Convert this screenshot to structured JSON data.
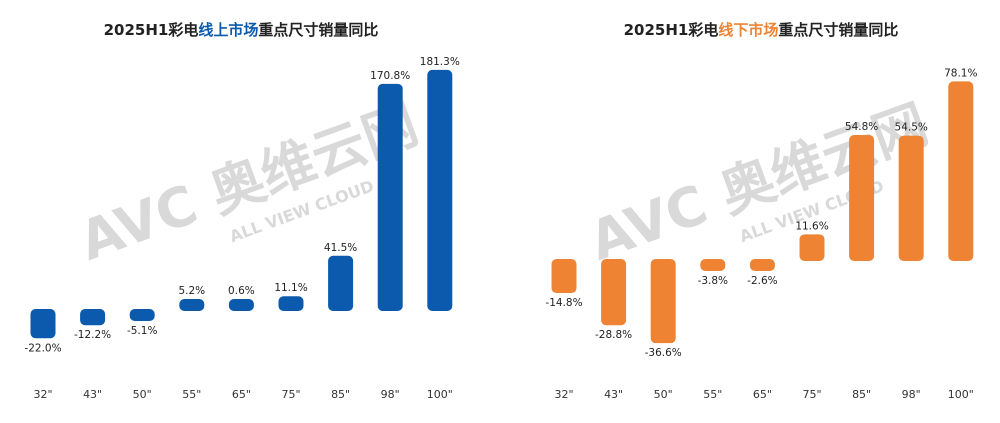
{
  "charts": [
    {
      "title_parts": [
        {
          "text": "2025H1彩电",
          "highlight": false
        },
        {
          "text": "线上市场",
          "highlight": true
        },
        {
          "text": "重点尺寸销量同比",
          "highlight": false
        }
      ],
      "accent_color": "#0b5aad"
    },
    {
      "title_parts": [
        {
          "text": "2025H1彩电",
          "highlight": false
        },
        {
          "text": "线下市场",
          "highlight": true
        },
        {
          "text": "重点尺寸销量同比",
          "highlight": false
        }
      ],
      "accent_color": "#ee8433"
    }
  ],
  "watermark": {
    "main": "AVC 奥维云网",
    "sub": "ALL VIEW CLOUD"
  },
  "chart_data": [
    {
      "type": "bar",
      "title": "2025H1彩电线上市场重点尺寸销量同比",
      "categories": [
        "32\"",
        "43\"",
        "50\"",
        "55\"",
        "65\"",
        "75\"",
        "85\"",
        "98\"",
        "100\""
      ],
      "values": [
        -22.0,
        -12.2,
        -5.1,
        5.2,
        0.6,
        11.1,
        41.5,
        170.8,
        181.3
      ],
      "value_labels": [
        "-22.0%",
        "-12.2%",
        "-5.1%",
        "5.2%",
        "0.6%",
        "11.1%",
        "41.5%",
        "170.8%",
        "181.3%"
      ],
      "color": "#0b5aad",
      "grid": false
    },
    {
      "type": "bar",
      "title": "2025H1彩电线下市场重点尺寸销量同比",
      "categories": [
        "32\"",
        "43\"",
        "50\"",
        "55\"",
        "65\"",
        "75\"",
        "85\"",
        "98\"",
        "100\""
      ],
      "values": [
        -14.8,
        -28.8,
        -36.6,
        -3.8,
        -2.6,
        11.6,
        54.8,
        54.5,
        78.1
      ],
      "value_labels": [
        "-14.8%",
        "-28.8%",
        "-36.6%",
        "-3.8%",
        "-2.6%",
        "11.6%",
        "54.8%",
        "54.5%",
        "78.1%"
      ],
      "color": "#ee8433",
      "grid": false
    }
  ]
}
